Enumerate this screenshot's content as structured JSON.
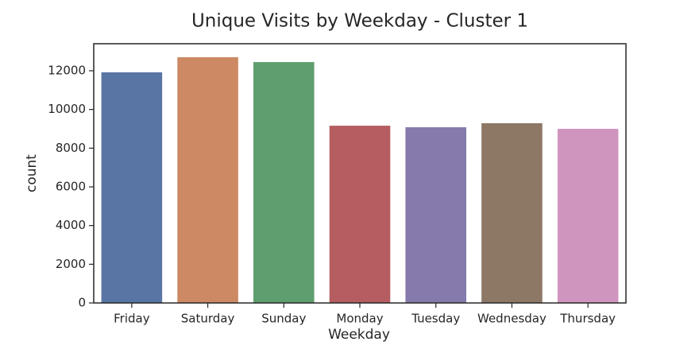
{
  "chart_data": {
    "type": "bar",
    "title": "Unique Visits by Weekday - Cluster 1",
    "x_label": "Weekday",
    "y_label": "count",
    "categories": [
      "Friday",
      "Saturday",
      "Sunday",
      "Monday",
      "Tuesday",
      "Wednesday",
      "Thursday"
    ],
    "values": [
      11920,
      12700,
      12450,
      9160,
      9080,
      9290,
      9000
    ],
    "colors": [
      "#5975a4",
      "#cc8963",
      "#5f9e6e",
      "#b55d60",
      "#857aab",
      "#8d7866",
      "#d095bf"
    ],
    "ylim": [
      0,
      13397
    ],
    "yticks": [
      0,
      2000,
      4000,
      6000,
      8000,
      10000,
      12000
    ],
    "grid": false
  }
}
